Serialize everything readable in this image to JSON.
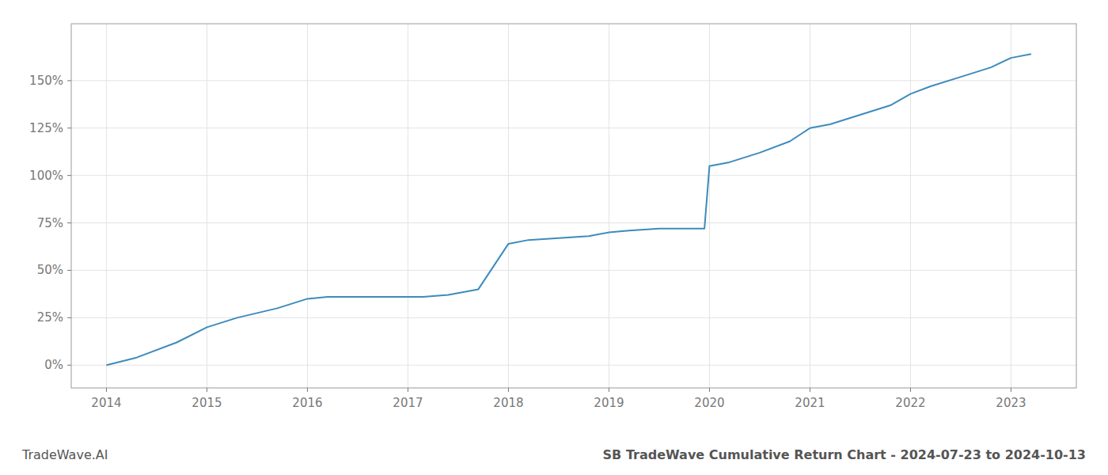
{
  "chart_data": {
    "type": "line",
    "title": "SB TradeWave Cumulative Return Chart - 2024-07-23 to 2024-10-13",
    "annotations": [
      "TradeWave.AI"
    ],
    "x": [
      2014,
      2014.3,
      2014.7,
      2015,
      2015.3,
      2015.7,
      2016,
      2016.2,
      2016.5,
      2016.8,
      2017,
      2017.15,
      2017.4,
      2017.7,
      2018,
      2018.2,
      2018.5,
      2018.8,
      2019,
      2019.2,
      2019.5,
      2019.8,
      2019.95,
      2020,
      2020.2,
      2020.5,
      2020.8,
      2021,
      2021.2,
      2021.5,
      2021.8,
      2022,
      2022.2,
      2022.5,
      2022.8,
      2023,
      2023.2
    ],
    "values": [
      0,
      4,
      12,
      20,
      25,
      30,
      35,
      36,
      36,
      36,
      36,
      36,
      37,
      40,
      64,
      66,
      67,
      68,
      70,
      71,
      72,
      72,
      72,
      105,
      107,
      112,
      118,
      125,
      127,
      132,
      137,
      143,
      147,
      152,
      157,
      162,
      164
    ],
    "color": "#3d8bbd",
    "xlim": [
      2013.65,
      2023.65
    ],
    "ylim": [
      -12,
      180
    ],
    "xticks": [
      2014,
      2015,
      2016,
      2017,
      2018,
      2019,
      2020,
      2021,
      2022,
      2023
    ],
    "yticks": [
      {
        "value": 0,
        "label": "0%"
      },
      {
        "value": 25,
        "label": "25%"
      },
      {
        "value": 50,
        "label": "50%"
      },
      {
        "value": 75,
        "label": "75%"
      },
      {
        "value": 100,
        "label": "100%"
      },
      {
        "value": 125,
        "label": "125%"
      },
      {
        "value": 150,
        "label": "150%"
      }
    ],
    "grid": true
  }
}
